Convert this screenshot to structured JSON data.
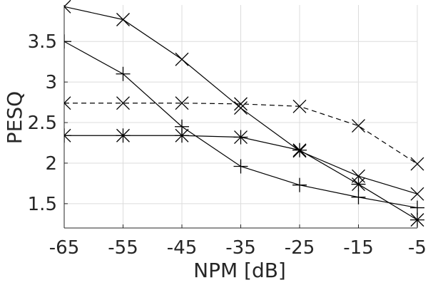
{
  "chart_data": {
    "type": "line",
    "xlabel": "NPM [dB]",
    "ylabel": "PESQ",
    "x": [
      -65,
      -55,
      -45,
      -35,
      -25,
      -15,
      -5
    ],
    "x_tick_labels": [
      "-65",
      "-55",
      "-45",
      "-35",
      "-25",
      "-15",
      "-5"
    ],
    "y_ticks": [
      1.5,
      2,
      2.5,
      3,
      3.5
    ],
    "y_tick_labels": [
      "1.5",
      "2",
      "2.5",
      "3",
      "3.5"
    ],
    "xlim": [
      -65,
      -5
    ],
    "ylim": [
      1.2,
      3.95
    ],
    "grid": true,
    "series": [
      {
        "marker": "x",
        "line_style": "solid",
        "values": [
          3.93,
          3.77,
          3.28,
          2.68,
          2.15,
          1.84,
          1.62
        ]
      },
      {
        "marker": "+",
        "line_style": "solid",
        "values": [
          3.5,
          3.1,
          2.45,
          1.96,
          1.73,
          1.58,
          1.45
        ]
      },
      {
        "marker": "x",
        "line_style": "dashed",
        "values": [
          2.74,
          2.74,
          2.74,
          2.73,
          2.7,
          2.46,
          1.99
        ]
      },
      {
        "marker": "*",
        "line_style": "solid",
        "values": [
          2.34,
          2.34,
          2.34,
          2.32,
          2.16,
          1.74,
          1.3
        ]
      }
    ]
  }
}
